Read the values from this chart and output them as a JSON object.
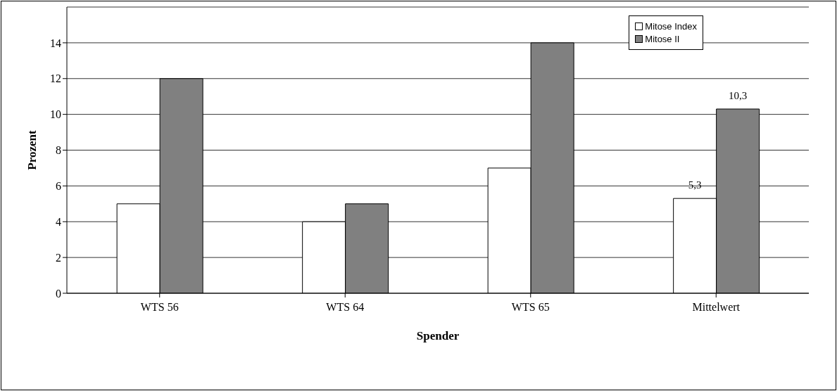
{
  "chart_data": {
    "type": "bar",
    "xlabel": "Spender",
    "ylabel": "Prozent",
    "categories": [
      "WTS 56",
      "WTS 64",
      "WTS 65",
      "Mittelwert"
    ],
    "series": [
      {
        "name": "Mitose Index",
        "color": "#ffffff",
        "values": [
          5,
          4,
          7,
          5.3
        ],
        "value_labels": [
          null,
          null,
          null,
          "5,3"
        ]
      },
      {
        "name": "Mitose II",
        "color": "#808080",
        "values": [
          12,
          5,
          14,
          10.3
        ],
        "value_labels": [
          null,
          null,
          null,
          "10,3"
        ]
      }
    ],
    "ylim": [
      0,
      16
    ],
    "yticks": [
      0,
      2,
      4,
      6,
      8,
      10,
      12,
      14
    ],
    "grid": "y",
    "legend": "top right"
  }
}
